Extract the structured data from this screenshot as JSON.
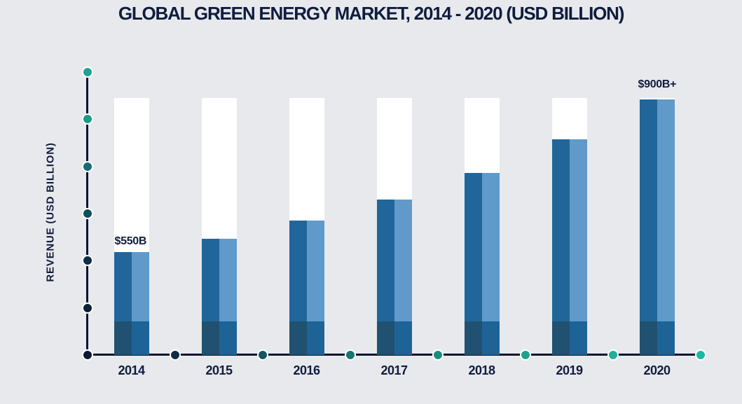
{
  "title": "GLOBAL GREEN ENERGY MARKET, 2014 - 2020 (USD BILLION)",
  "y_axis_label": "REVENUE (USD BILLION)",
  "chart_data": {
    "type": "bar",
    "title": "GLOBAL GREEN ENERGY MARKET, 2014 - 2020 (USD BILLION)",
    "xlabel": "",
    "ylabel": "REVENUE (USD BILLION)",
    "categories": [
      "2014",
      "2015",
      "2016",
      "2017",
      "2018",
      "2019",
      "2020"
    ],
    "values_usd_billion": [
      550,
      580,
      620,
      670,
      730,
      810,
      900
    ],
    "value_labels": [
      "$550B",
      "",
      "",
      "",
      "",
      "",
      "$900B+"
    ],
    "bar_height_fractions": [
      0.401,
      0.452,
      0.523,
      0.605,
      0.708,
      0.839,
      0.995
    ],
    "background_track_full_height": true,
    "grid": false,
    "legend": false
  },
  "colors": {
    "background": "#e7e9ec",
    "text_navy": "#101c3e",
    "axis_line": "#0c1430",
    "track_white": "#ffffff",
    "bar_dark": "#20669b",
    "bar_light": "#609aca",
    "bar_base_dark": "#215170",
    "bar_base_mid": "#1e6396",
    "y_dot_colors": [
      "#1fa390",
      "#1e9a88",
      "#176b74",
      "#134c5c",
      "#102c46",
      "#0d2238",
      "#0b1a33"
    ],
    "x_dot_colors": [
      "#0b1a33",
      "#102c44",
      "#155562",
      "#187570",
      "#1b8b7d",
      "#1fa18d",
      "#23ae9a",
      "#1cb8a3"
    ]
  }
}
